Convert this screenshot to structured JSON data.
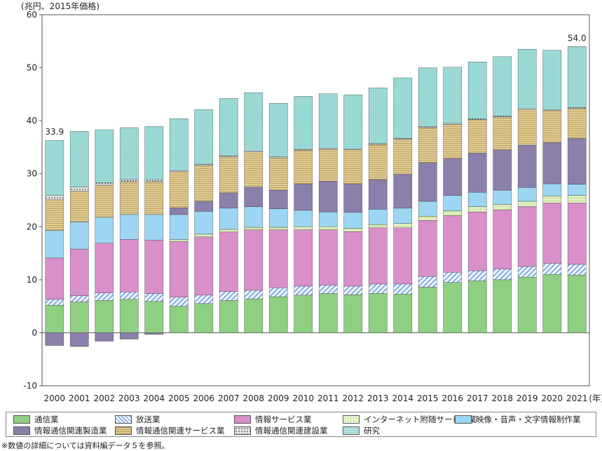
{
  "unit_label": "(兆円、2015年価格)",
  "note": "※数値の詳細については資料編データ５を参照。",
  "chart_data": {
    "type": "bar",
    "stacked": true,
    "xlabel_suffix": "(年)",
    "ylim": [
      -10,
      60
    ],
    "yticks": [
      -10,
      0,
      10,
      20,
      30,
      40,
      50,
      60
    ],
    "categories": [
      "2000",
      "2001",
      "2002",
      "2003",
      "2004",
      "2005",
      "2006",
      "2007",
      "2008",
      "2009",
      "2010",
      "2011",
      "2012",
      "2013",
      "2014",
      "2015",
      "2016",
      "2017",
      "2018",
      "2019",
      "2020",
      "2021"
    ],
    "annotations": [
      {
        "category": "2000",
        "text": "33.9"
      },
      {
        "category": "2021",
        "text": "54.0"
      }
    ],
    "series": [
      {
        "name": "通信業",
        "color": "#8fcf82",
        "pattern": "solid",
        "values": [
          5.2,
          5.8,
          6.1,
          6.3,
          5.9,
          5.0,
          5.5,
          6.1,
          6.4,
          6.8,
          7.1,
          7.4,
          7.2,
          7.4,
          7.3,
          8.6,
          9.5,
          9.8,
          10.0,
          10.5,
          11.0,
          10.9
        ]
      },
      {
        "name": "放送業",
        "color": "#8fb4e6",
        "pattern": "hatch",
        "values": [
          1.1,
          1.2,
          1.4,
          1.4,
          1.5,
          1.7,
          1.6,
          1.7,
          1.6,
          1.7,
          1.7,
          1.6,
          1.6,
          1.8,
          1.9,
          2.0,
          1.9,
          1.9,
          2.0,
          2.0,
          2.1,
          2.0
        ]
      },
      {
        "name": "情報サービス業",
        "color": "#d98fca",
        "pattern": "solid",
        "values": [
          7.8,
          8.8,
          9.4,
          9.9,
          10.1,
          10.5,
          11.0,
          11.2,
          11.4,
          10.9,
          10.6,
          10.4,
          10.3,
          10.6,
          10.6,
          10.6,
          10.7,
          11.1,
          11.2,
          11.3,
          11.4,
          11.6
        ]
      },
      {
        "name": "インターネット附随サービス業",
        "color": "#cfe8a0",
        "pattern": "grid",
        "values": [
          0.0,
          0.0,
          0.0,
          0.0,
          0.0,
          0.4,
          0.5,
          0.5,
          0.5,
          0.5,
          0.6,
          0.6,
          0.6,
          0.6,
          0.8,
          0.8,
          0.9,
          1.0,
          1.0,
          1.0,
          1.3,
          1.4
        ]
      },
      {
        "name": "映像・音声・文字情報制作業",
        "color": "#9cd6f2",
        "pattern": "solid",
        "values": [
          5.2,
          5.1,
          4.9,
          4.7,
          4.8,
          4.7,
          4.3,
          4.0,
          3.9,
          3.5,
          3.1,
          2.8,
          3.0,
          2.9,
          2.9,
          2.8,
          2.9,
          2.7,
          2.7,
          2.6,
          2.3,
          2.1
        ]
      },
      {
        "name": "情報通信関連製造業",
        "color": "#8b7fab",
        "pattern": "solid",
        "values": [
          -2.4,
          -2.6,
          -1.6,
          -1.2,
          -0.3,
          1.3,
          1.9,
          2.9,
          3.7,
          3.5,
          5.0,
          5.8,
          5.4,
          5.6,
          6.4,
          7.3,
          7.0,
          7.4,
          7.6,
          8.0,
          7.8,
          8.7
        ]
      },
      {
        "name": "情報通信関連サービス業",
        "color": "#e0cc94",
        "pattern": "lines",
        "values": [
          5.8,
          5.8,
          6.0,
          6.2,
          6.2,
          6.8,
          6.8,
          6.8,
          6.6,
          6.1,
          6.3,
          6.0,
          6.4,
          6.6,
          6.6,
          6.6,
          6.4,
          6.3,
          6.2,
          6.7,
          6.0,
          5.6
        ]
      },
      {
        "name": "情報通信関連建設業",
        "color": "#c9c9c9",
        "pattern": "dots",
        "values": [
          0.8,
          0.8,
          0.5,
          0.4,
          0.4,
          0.2,
          0.2,
          0.2,
          0.2,
          0.2,
          0.2,
          0.2,
          0.2,
          0.2,
          0.2,
          0.2,
          0.2,
          0.2,
          0.2,
          0.2,
          0.2,
          0.2
        ]
      },
      {
        "name": "研究",
        "color": "#8fd4d0",
        "pattern": "grid-fine",
        "values": [
          10.4,
          10.5,
          10.0,
          9.8,
          10.0,
          9.8,
          10.3,
          10.8,
          11.0,
          10.1,
          10.0,
          10.3,
          10.2,
          10.5,
          11.4,
          11.1,
          10.6,
          10.7,
          11.2,
          11.2,
          11.2,
          11.5
        ]
      }
    ]
  }
}
